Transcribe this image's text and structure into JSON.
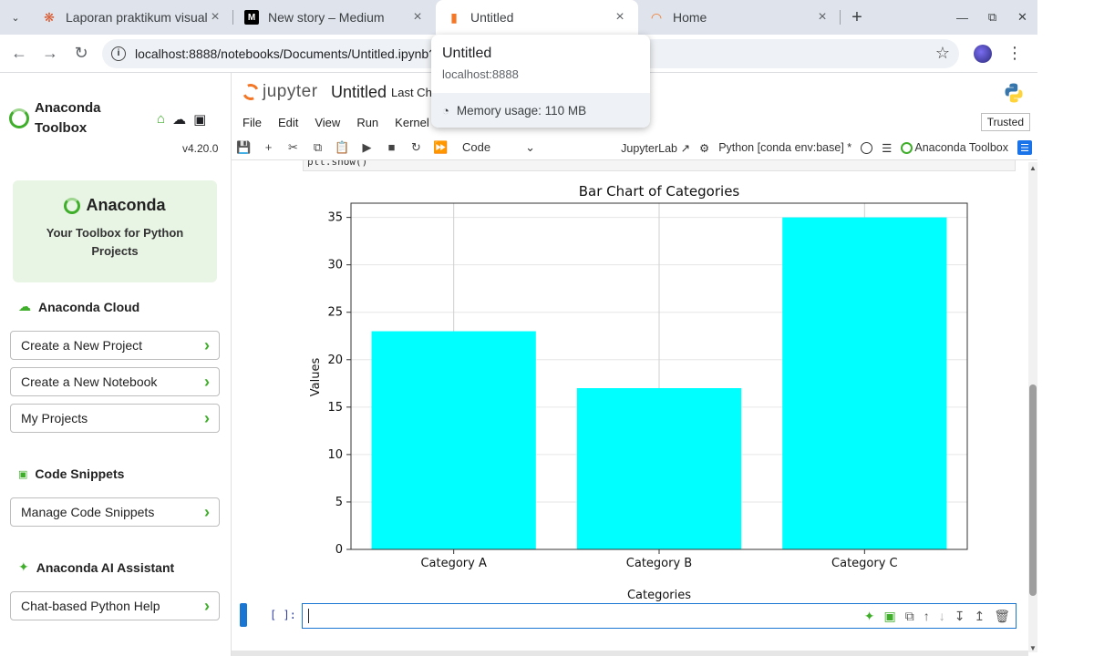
{
  "browser": {
    "tabs": [
      {
        "title": "Laporan praktikum visual",
        "favicon": "asterisk-icon"
      },
      {
        "title": "New story – Medium",
        "favicon": "medium-icon"
      },
      {
        "title": "Untitled",
        "favicon": "notebook-icon"
      },
      {
        "title": "Home",
        "favicon": "jupyter-icon"
      }
    ],
    "url": "localhost:8888/notebooks/Documents/Untitled.ipynb?",
    "hovercard": {
      "title": "Untitled",
      "host": "localhost:8888",
      "memory": "Memory usage: 110 MB"
    }
  },
  "sidebar": {
    "brand": "Anaconda Toolbox",
    "version": "v4.20.0",
    "hero": {
      "logo": "Anaconda",
      "subtitle": "Your Toolbox for Python Projects"
    },
    "cloud": {
      "title": "Anaconda Cloud",
      "items": [
        "Create a New Project",
        "Create a New Notebook",
        "My Projects"
      ]
    },
    "snippets": {
      "title": "Code Snippets",
      "items": [
        "Manage Code Snippets"
      ]
    },
    "ai": {
      "title": "Anaconda AI Assistant",
      "items": [
        "Chat-based Python Help"
      ]
    }
  },
  "jupyter": {
    "logo": "jupyter",
    "title": "Untitled",
    "last_checkpoint": "Last Ch",
    "menu": [
      "File",
      "Edit",
      "View",
      "Run",
      "Kernel"
    ],
    "trusted": "Trusted",
    "cell_type": "Code",
    "jupyterlab": "JupyterLab",
    "kernel": "Python [conda env:base] *",
    "anaconda_toolbox": "Anaconda Toolbox",
    "prev_code": "plt.show()",
    "prompt": "[ ]:"
  },
  "colors": {
    "bar": "#00ffff",
    "accent": "#1976d2",
    "anaconda_green": "#3fae2a"
  },
  "chart_data": {
    "type": "bar",
    "title": "Bar Chart of Categories",
    "xlabel": "Categories",
    "ylabel": "Values",
    "categories": [
      "Category A",
      "Category B",
      "Category C"
    ],
    "values": [
      23,
      17,
      35
    ],
    "ylim": [
      0,
      36.5
    ],
    "yticks": [
      0,
      5,
      10,
      15,
      20,
      25,
      30,
      35
    ],
    "grid": true
  }
}
